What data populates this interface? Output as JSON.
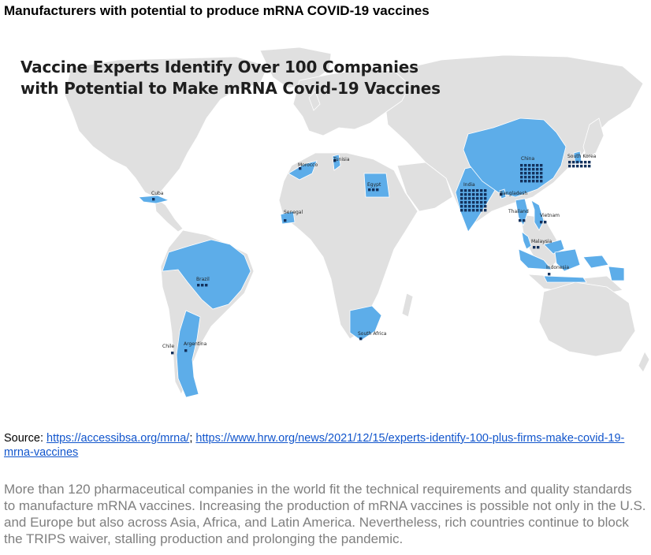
{
  "page_title": "Manufacturers with potential to produce mRNA COVID-19 vaccines",
  "map": {
    "heading_line1": "Vaccine Experts Identify Over 100 Companies",
    "heading_line2": "with Potential to Make mRNA Covid-19 Vaccines",
    "base_color": "#e0e0e0",
    "highlight_color": "#5dade9",
    "marker_color": "#13315c",
    "countries": [
      {
        "name": "Cuba",
        "label": "Cuba",
        "companies": 1
      },
      {
        "name": "Morocco",
        "label": "Morocco",
        "companies": 1
      },
      {
        "name": "Tunisia",
        "label": "Tunisia",
        "companies": 1
      },
      {
        "name": "Egypt",
        "label": "Egypt",
        "companies": 3
      },
      {
        "name": "Senegal",
        "label": "Senegal",
        "companies": 1
      },
      {
        "name": "Brazil",
        "label": "Brazil",
        "companies": 3
      },
      {
        "name": "Chile",
        "label": "Chile",
        "companies": 1
      },
      {
        "name": "Argentina",
        "label": "Argentina",
        "companies": 1
      },
      {
        "name": "South Africa",
        "label": "South Africa",
        "companies": 1
      },
      {
        "name": "India",
        "label": "India",
        "companies": 42
      },
      {
        "name": "China",
        "label": "China",
        "companies": 30
      },
      {
        "name": "Bangladesh",
        "label": "Bangladesh",
        "companies": 1
      },
      {
        "name": "Thailand",
        "label": "Thailand",
        "companies": 2
      },
      {
        "name": "Vietnam",
        "label": "Vietnam",
        "companies": 2
      },
      {
        "name": "Malaysia",
        "label": "Malaysia",
        "companies": 2
      },
      {
        "name": "Indonesia",
        "label": "Indonesia",
        "companies": 1
      },
      {
        "name": "South Korea",
        "label": "South Korea",
        "companies": 12
      }
    ]
  },
  "source": {
    "prefix": "Source: ",
    "link1": "https://accessibsa.org/mrna/",
    "separator": "; ",
    "link2": "https://www.hrw.org/news/2021/12/15/experts-identify-100-plus-firms-make-covid-19-mrna-vaccines"
  },
  "summary": "More than 120 pharmaceutical companies in the world fit the technical requirements and quality standards to manufacture mRNA vaccines. Increasing the production of mRNA vaccines is possible not only in the U.S. and Europe but also across Asia, Africa, and Latin America. Nevertheless, rich countries continue to block the TRIPS waiver, stalling production and prolonging the pandemic."
}
